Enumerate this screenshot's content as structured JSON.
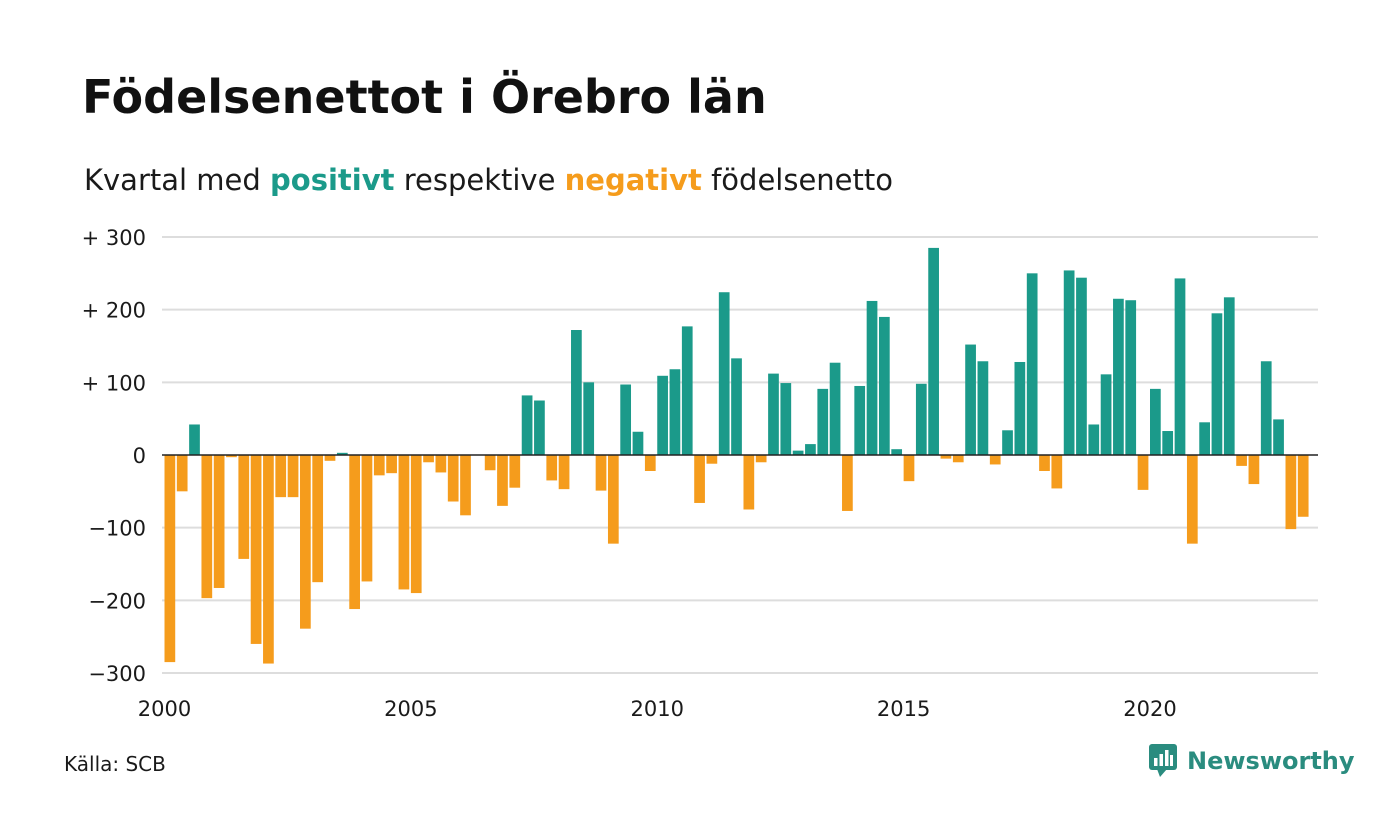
{
  "header": {
    "title": "Födelsenettot i Örebro län",
    "subtitle_pre": "Kvartal med ",
    "subtitle_pos": "positivt",
    "subtitle_mid": " respektive ",
    "subtitle_neg": "negativt",
    "subtitle_post": " födelsenetto"
  },
  "footer": {
    "source": "Källa: SCB",
    "brand": "Newsworthy"
  },
  "colors": {
    "positive": "#1b9a8a",
    "negative": "#f59c1c",
    "grid": "#dddddd",
    "brand": "#2a8c7f"
  },
  "chart_data": {
    "type": "bar",
    "title": "Födelsenettot i Örebro län",
    "subtitle": "Kvartal med positivt respektive negativt födelsenetto",
    "ylim": [
      -300,
      300
    ],
    "grid": true,
    "y_ticks": [
      300,
      200,
      100,
      0,
      -100,
      -200,
      -300
    ],
    "y_tick_labels": [
      "+ 300",
      "+ 200",
      "+ 100",
      "0",
      "−100",
      "−200",
      "−300"
    ],
    "x_ticks": [
      2000,
      2005,
      2010,
      2015,
      2020
    ],
    "x_tick_labels": [
      "2000",
      "2005",
      "2010",
      "2015",
      "2020"
    ],
    "x_start": 2000,
    "periods_per_year": 4,
    "values": [
      -285,
      -50,
      42,
      -197,
      -183,
      -3,
      -143,
      -260,
      -287,
      -58,
      -58,
      -239,
      -175,
      -8,
      3,
      -212,
      -174,
      -28,
      -25,
      -185,
      -190,
      -10,
      -24,
      -64,
      -83,
      0,
      -21,
      -70,
      -45,
      82,
      75,
      -35,
      -47,
      172,
      100,
      -49,
      -122,
      97,
      32,
      -22,
      109,
      118,
      177,
      -66,
      -12,
      224,
      133,
      -75,
      -10,
      112,
      99,
      6,
      15,
      91,
      127,
      -77,
      95,
      212,
      190,
      8,
      -36,
      98,
      285,
      -5,
      -10,
      152,
      129,
      -13,
      34,
      128,
      250,
      -22,
      -46,
      254,
      244,
      42,
      111,
      215,
      213,
      -48,
      91,
      33,
      243,
      -122,
      45,
      195,
      217,
      -15,
      -40,
      129,
      49,
      -102,
      -85
    ]
  }
}
